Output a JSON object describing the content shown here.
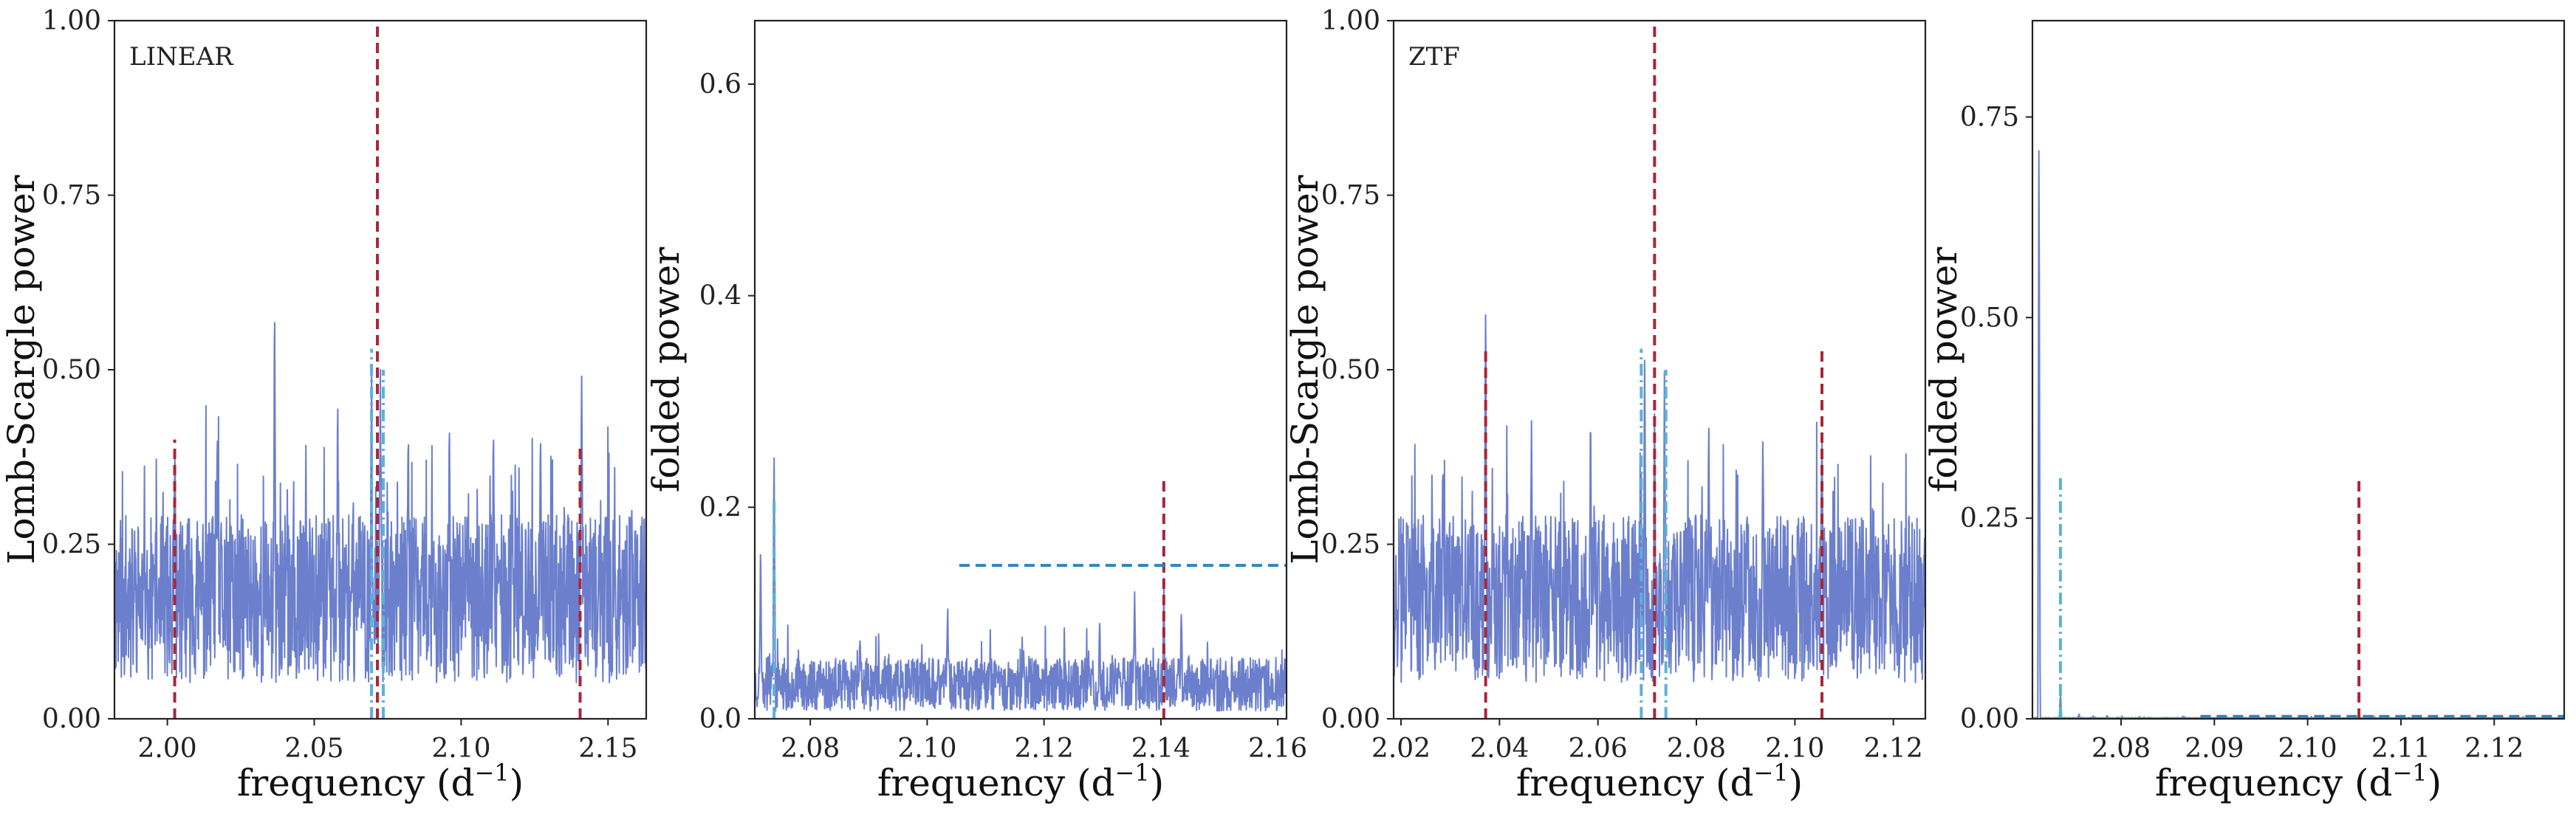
{
  "chart_data": [
    {
      "type": "line",
      "panel_label": "LINEAR",
      "xlabel": "frequency (d",
      "xlabel_sup": "−1",
      "xlabel_close": ")",
      "ylabel": "Lomb-Scargle power",
      "xlim": [
        1.982,
        2.163
      ],
      "ylim": [
        0,
        1.0
      ],
      "xticks": [
        2.0,
        2.05,
        2.1,
        2.15
      ],
      "xtick_labels": [
        "2.00",
        "2.05",
        "2.10",
        "2.15"
      ],
      "yticks": [
        0,
        0.25,
        0.5,
        0.75,
        1.0
      ],
      "ytick_labels": [
        "0.00",
        "0.25",
        "0.50",
        "0.75",
        "1.00"
      ],
      "grid": false,
      "series": [
        {
          "color": "#6b7fcc",
          "baseline": 0.16,
          "noise": 0.12,
          "seed": 11,
          "peaks": [
            [
              2.0365,
              0.625
            ],
            [
              2.0695,
              0.525
            ],
            [
              2.0725,
              0.5
            ],
            [
              2.0025,
              0.4
            ],
            [
              2.141,
              0.505
            ],
            [
              2.058,
              0.46
            ],
            [
              2.082,
              0.44
            ],
            [
              2.017,
              0.43
            ],
            [
              2.127,
              0.42
            ],
            [
              2.096,
              0.42
            ],
            [
              2.111,
              0.41
            ]
          ]
        }
      ],
      "vlines": [
        {
          "x": 2.0715,
          "y0": 0,
          "y1": 1.0,
          "color": "#a8263a",
          "style": "dashed"
        },
        {
          "x": 2.0025,
          "y0": 0,
          "y1": 0.4,
          "color": "#a8263a",
          "style": "dashed"
        },
        {
          "x": 2.1405,
          "y0": 0,
          "y1": 0.39,
          "color": "#a8263a",
          "style": "dashed"
        },
        {
          "x": 2.0695,
          "y0": 0,
          "y1": 0.53,
          "color": "#5ab1d9",
          "style": "dashdot"
        },
        {
          "x": 2.0735,
          "y0": 0,
          "y1": 0.5,
          "color": "#5ab1d9",
          "style": "dashdot"
        }
      ],
      "hlines": []
    },
    {
      "type": "line",
      "panel_label": "",
      "xlabel": "frequency (d",
      "xlabel_sup": "−1",
      "xlabel_close": ")",
      "ylabel": "folded power",
      "xlim": [
        2.0705,
        2.1615
      ],
      "ylim": [
        0,
        0.66
      ],
      "xticks": [
        2.08,
        2.1,
        2.12,
        2.14,
        2.16
      ],
      "xtick_labels": [
        "2.08",
        "2.10",
        "2.12",
        "2.14",
        "2.16"
      ],
      "yticks": [
        0,
        0.2,
        0.4,
        0.6
      ],
      "ytick_labels": [
        "0.0",
        "0.2",
        "0.4",
        "0.6"
      ],
      "grid": false,
      "series": [
        {
          "color": "#6b7fcc",
          "baseline": 0.03,
          "noise": 0.025,
          "seed": 23,
          "peaks": [
            [
              2.0738,
              0.265
            ],
            [
              2.0715,
              0.17
            ],
            [
              2.1035,
              0.11
            ],
            [
              2.1355,
              0.12
            ],
            [
              2.1405,
              0.135
            ],
            [
              2.1435,
              0.1
            ],
            [
              2.1295,
              0.095
            ],
            [
              2.0885,
              0.075
            ],
            [
              2.1165,
              0.07
            ]
          ]
        }
      ],
      "vlines": [
        {
          "x": 2.1405,
          "y0": 0,
          "y1": 0.23,
          "color": "#a8263a",
          "style": "dashed"
        },
        {
          "x": 2.0738,
          "y0": 0,
          "y1": 0.21,
          "color": "#5ab1d9",
          "style": "dashdot"
        }
      ],
      "hlines": [
        {
          "y": 0.145,
          "x0": 2.1055,
          "x1": 2.1615,
          "color": "#2b85c7",
          "style": "dashed"
        }
      ]
    },
    {
      "type": "line",
      "panel_label": "ZTF",
      "xlabel": "frequency (d",
      "xlabel_sup": "−1",
      "xlabel_close": ")",
      "ylabel": "Lomb-Scargle power",
      "xlim": [
        2.0185,
        2.1265
      ],
      "ylim": [
        0,
        1.0
      ],
      "xticks": [
        2.02,
        2.04,
        2.06,
        2.08,
        2.1,
        2.12
      ],
      "xtick_labels": [
        "2.02",
        "2.04",
        "2.06",
        "2.08",
        "2.10",
        "2.12"
      ],
      "yticks": [
        0,
        0.25,
        0.5,
        0.75,
        1.0
      ],
      "ytick_labels": [
        "0.00",
        "0.25",
        "0.50",
        "0.75",
        "1.00"
      ],
      "grid": false,
      "series": [
        {
          "color": "#6b7fcc",
          "baseline": 0.16,
          "noise": 0.12,
          "seed": 37,
          "peaks": [
            [
              2.0372,
              0.625
            ],
            [
              2.0695,
              0.525
            ],
            [
              2.0715,
              0.44
            ],
            [
              2.0735,
              0.5
            ],
            [
              2.0585,
              0.46
            ],
            [
              2.0825,
              0.44
            ],
            [
              2.1055,
              0.4
            ],
            [
              2.0465,
              0.43
            ],
            [
              2.0285,
              0.38
            ],
            [
              2.0935,
              0.42
            ]
          ]
        }
      ],
      "vlines": [
        {
          "x": 2.0715,
          "y0": 0,
          "y1": 1.0,
          "color": "#a8263a",
          "style": "dashed"
        },
        {
          "x": 2.0372,
          "y0": 0,
          "y1": 0.53,
          "color": "#a8263a",
          "style": "dashed"
        },
        {
          "x": 2.1055,
          "y0": 0,
          "y1": 0.53,
          "color": "#a8263a",
          "style": "dashed"
        },
        {
          "x": 2.0688,
          "y0": 0,
          "y1": 0.53,
          "color": "#5ab1d9",
          "style": "dashdot"
        },
        {
          "x": 2.0738,
          "y0": 0,
          "y1": 0.5,
          "color": "#5ab1d9",
          "style": "dashdot"
        }
      ],
      "hlines": []
    },
    {
      "type": "line",
      "panel_label": "",
      "xlabel": "frequency (d",
      "xlabel_sup": "−1",
      "xlabel_close": ")",
      "ylabel": "folded power",
      "xlim": [
        2.0705,
        2.1275
      ],
      "ylim": [
        0,
        0.87
      ],
      "xticks": [
        2.08,
        2.09,
        2.1,
        2.11,
        2.12
      ],
      "xtick_labels": [
        "2.08",
        "2.09",
        "2.10",
        "2.11",
        "2.12"
      ],
      "yticks": [
        0,
        0.25,
        0.5,
        0.75
      ],
      "ytick_labels": [
        "0.00",
        "0.25",
        "0.50",
        "0.75"
      ],
      "grid": false,
      "series": [
        {
          "color": "#6b7fcc",
          "baseline": 0.0,
          "noise": 0.0015,
          "seed": 5,
          "peaks": [
            [
              2.0712,
              0.755
            ],
            [
              2.0735,
              0.032
            ],
            [
              2.0755,
              0.006
            ],
            [
              2.0785,
              0.004
            ]
          ]
        }
      ],
      "vlines": [
        {
          "x": 2.1055,
          "y0": 0,
          "y1": 0.3,
          "color": "#a8263a",
          "style": "dashed"
        },
        {
          "x": 2.0735,
          "y0": 0,
          "y1": 0.3,
          "color": "#5ab1d9",
          "style": "dashdot"
        }
      ],
      "hlines": [
        {
          "y": 0.003,
          "x0": 2.0885,
          "x1": 2.1275,
          "color": "#2b85c7",
          "style": "dashed"
        }
      ]
    }
  ]
}
